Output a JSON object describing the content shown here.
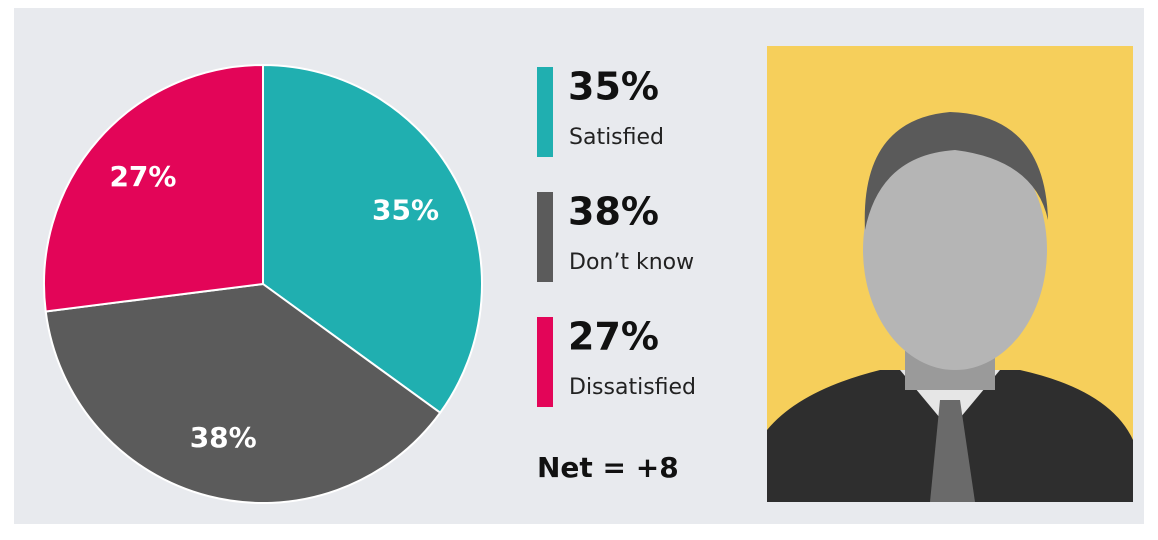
{
  "chart_data": {
    "type": "pie",
    "categories": [
      "Satisfied",
      "Don’t know",
      "Dissatisfied"
    ],
    "values": [
      35,
      38,
      27
    ],
    "value_labels": [
      "35%",
      "38%",
      "27%"
    ],
    "colors": [
      "#20afb0",
      "#5b5b5b",
      "#e30558"
    ],
    "annotation": "Net = +8"
  }
}
